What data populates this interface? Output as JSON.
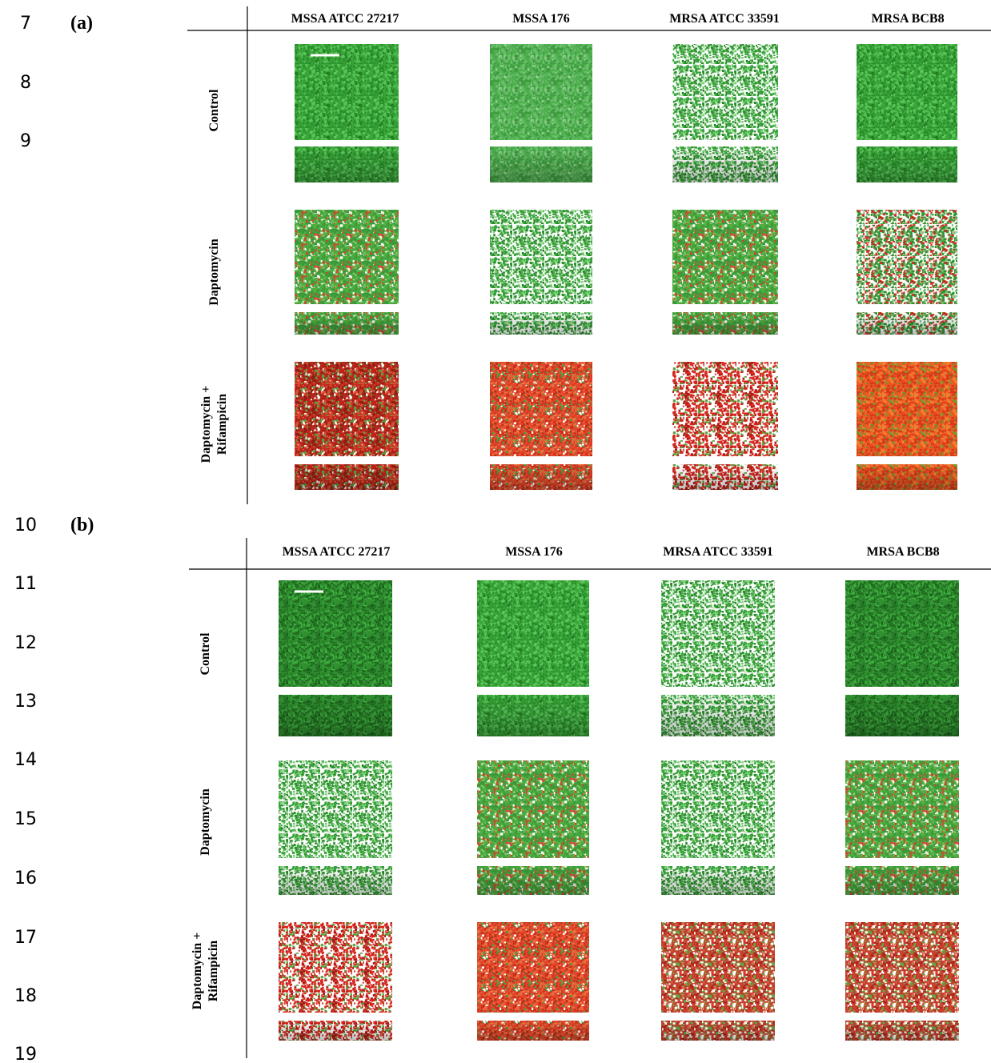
{
  "line_numbers": [
    "7",
    "8",
    "9",
    "10",
    "11",
    "12",
    "13",
    "14",
    "15",
    "16",
    "17",
    "18",
    "19"
  ],
  "panels": [
    {
      "label": "(a)",
      "columns": [
        "MSSA ATCC 27217",
        "MSSA 176",
        "MRSA ATCC 33591",
        "MRSA BCB8"
      ],
      "rows": [
        [
          "Control"
        ],
        [
          "Daptomycin"
        ],
        [
          "Daptomycin +",
          "Rifampicin"
        ]
      ]
    },
    {
      "label": "(b)",
      "columns": [
        "MSSA ATCC 27217",
        "MSSA 176",
        "MRSA ATCC 33591",
        "MRSA BCB8"
      ],
      "rows": [
        [
          "Control"
        ],
        [
          "Daptomycin"
        ],
        [
          "Daptomycin +",
          "Rifampicin"
        ]
      ]
    }
  ]
}
